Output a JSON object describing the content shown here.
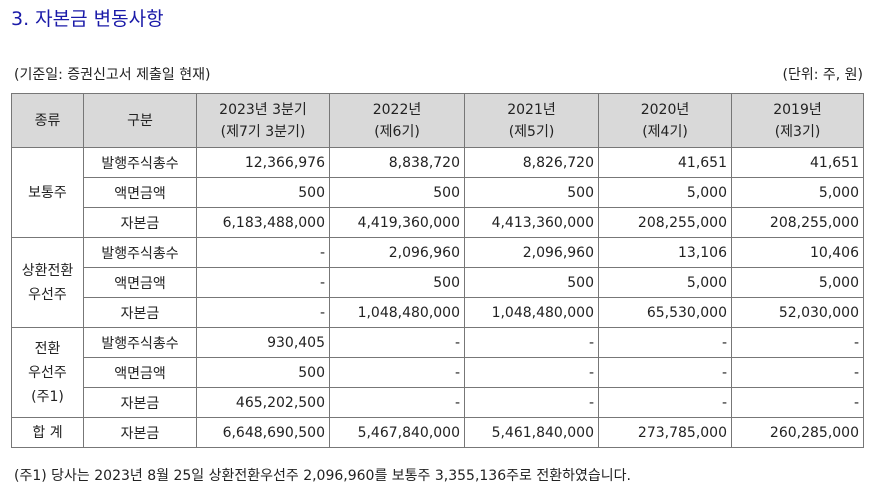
{
  "title": "3. 자본금 변동사항",
  "basis": "(기준일: 증권신고서 제출일 현재)",
  "unit": "(단위: 주, 원)",
  "table": {
    "header": {
      "kind": "종류",
      "item": "구분",
      "periods": [
        [
          "2023년 3분기",
          "(제7기 3분기)"
        ],
        [
          "2022년",
          "(제6기)"
        ],
        [
          "2021년",
          "(제5기)"
        ],
        [
          "2020년",
          "(제4기)"
        ],
        [
          "2019년",
          "(제3기)"
        ]
      ]
    },
    "groups": [
      {
        "label": [
          "보통주"
        ],
        "rows": [
          {
            "item": "발행주식총수",
            "values": [
              "12,366,976",
              "8,838,720",
              "8,826,720",
              "41,651",
              "41,651"
            ]
          },
          {
            "item": "액면금액",
            "values": [
              "500",
              "500",
              "500",
              "5,000",
              "5,000"
            ]
          },
          {
            "item": "자본금",
            "values": [
              "6,183,488,000",
              "4,419,360,000",
              "4,413,360,000",
              "208,255,000",
              "208,255,000"
            ]
          }
        ]
      },
      {
        "label": [
          "상환전환",
          "우선주"
        ],
        "rows": [
          {
            "item": "발행주식총수",
            "values": [
              "-",
              "2,096,960",
              "2,096,960",
              "13,106",
              "10,406"
            ]
          },
          {
            "item": "액면금액",
            "values": [
              "-",
              "500",
              "500",
              "5,000",
              "5,000"
            ]
          },
          {
            "item": "자본금",
            "values": [
              "-",
              "1,048,480,000",
              "1,048,480,000",
              "65,530,000",
              "52,030,000"
            ]
          }
        ]
      },
      {
        "label": [
          "전환",
          "우선주",
          "(주1)"
        ],
        "rows": [
          {
            "item": "발행주식총수",
            "values": [
              "930,405",
              "-",
              "-",
              "-",
              "-"
            ]
          },
          {
            "item": "액면금액",
            "values": [
              "500",
              "-",
              "-",
              "-",
              "-"
            ]
          },
          {
            "item": "자본금",
            "values": [
              "465,202,500",
              "-",
              "-",
              "-",
              "-"
            ]
          }
        ]
      },
      {
        "label": [
          "합 계"
        ],
        "rows": [
          {
            "item": "자본금",
            "values": [
              "6,648,690,500",
              "5,467,840,000",
              "5,461,840,000",
              "273,785,000",
              "260,285,000"
            ]
          }
        ]
      }
    ]
  },
  "note": "(주1) 당사는 2023년 8월 25일 상환전환우선주 2,096,960를 보통주 3,355,136주로 전환하였습니다."
}
